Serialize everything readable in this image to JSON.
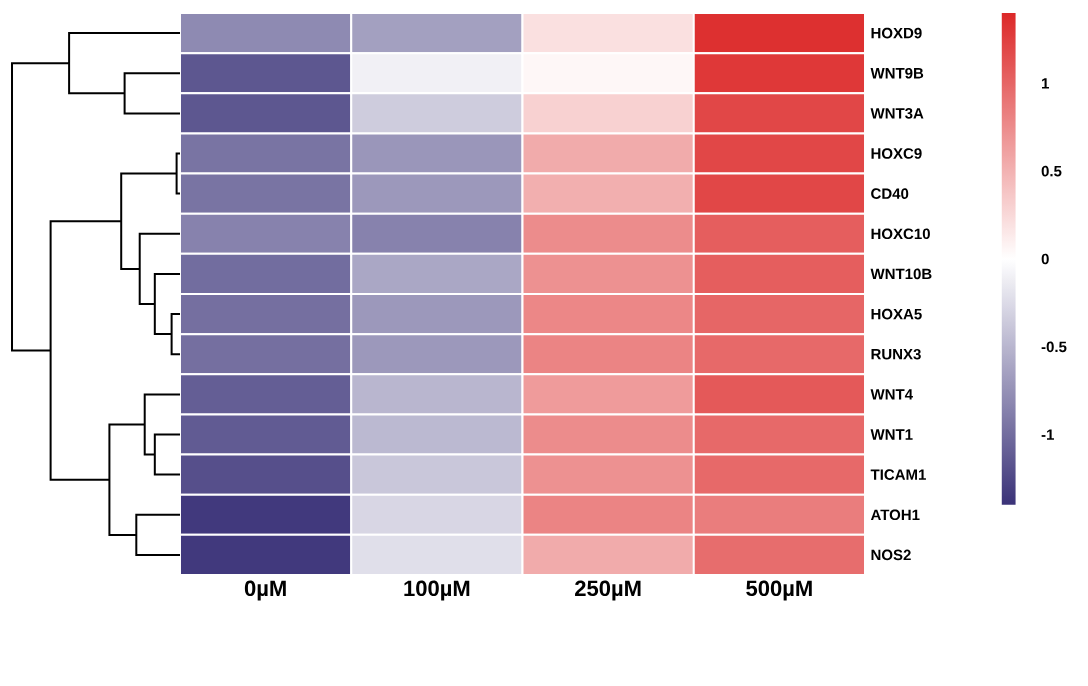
{
  "chart_data": {
    "type": "heatmap",
    "categories": [
      "0µM",
      "100µM",
      "250µM",
      "500µM"
    ],
    "y_categories": [
      "HOXD9",
      "WNT9B",
      "WNT3A",
      "HOXC9",
      "CD40",
      "HOXC10",
      "WNT10B",
      "HOXA5",
      "RUNX3",
      "WNT4",
      "WNT1",
      "TICAM1",
      "ATOH1",
      "NOS2"
    ],
    "cells": [
      [
        -0.8,
        -0.65,
        0.2,
        1.35
      ],
      [
        -1.15,
        -0.1,
        0.05,
        1.3
      ],
      [
        -1.15,
        -0.35,
        0.3,
        1.2
      ],
      [
        -0.95,
        -0.72,
        0.55,
        1.2
      ],
      [
        -0.95,
        -0.7,
        0.52,
        1.2
      ],
      [
        -0.85,
        -0.85,
        0.75,
        1.05
      ],
      [
        -1.0,
        -0.6,
        0.72,
        1.05
      ],
      [
        -0.98,
        -0.7,
        0.78,
        1.0
      ],
      [
        -0.98,
        -0.7,
        0.8,
        0.98
      ],
      [
        -1.1,
        -0.5,
        0.65,
        1.08
      ],
      [
        -1.12,
        -0.48,
        0.75,
        0.98
      ],
      [
        -1.2,
        -0.38,
        0.72,
        0.98
      ],
      [
        -1.35,
        -0.28,
        0.8,
        0.85
      ],
      [
        -1.35,
        -0.22,
        0.55,
        0.95
      ]
    ],
    "clim": [
      -1.4,
      1.4
    ],
    "cticks": [
      -1,
      -0.5,
      0,
      0.5,
      1
    ]
  }
}
